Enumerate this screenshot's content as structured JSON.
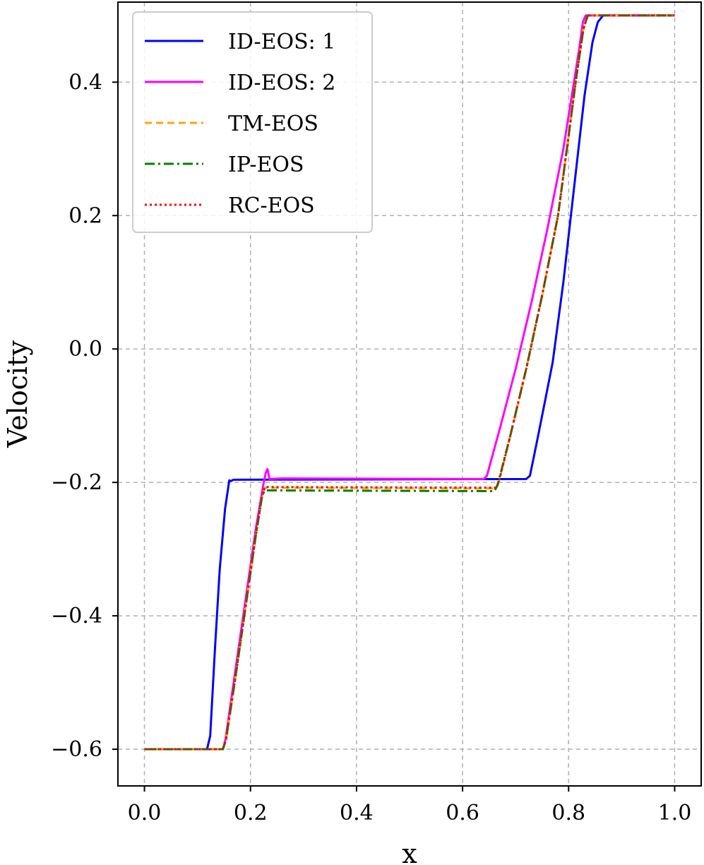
{
  "chart_data": {
    "type": "line",
    "title": "",
    "xlabel": "x",
    "ylabel": "Velocity",
    "xlim": [
      -0.05,
      1.05
    ],
    "ylim": [
      -0.655,
      0.52
    ],
    "xticks": [
      0.0,
      0.2,
      0.4,
      0.6,
      0.8,
      1.0
    ],
    "xtick_labels": [
      "0.0",
      "0.2",
      "0.4",
      "0.6",
      "0.8",
      "1.0"
    ],
    "yticks": [
      -0.6,
      -0.4,
      -0.2,
      0.0,
      0.2,
      0.4
    ],
    "ytick_labels": [
      "−0.6",
      "−0.4",
      "−0.2",
      "0.0",
      "0.2",
      "0.4"
    ],
    "grid": true,
    "legend_position": "top-left",
    "series": [
      {
        "name": "ID-EOS: 1",
        "color": "#0000ff",
        "dash": "solid",
        "points": [
          [
            0.0,
            -0.6
          ],
          [
            0.118,
            -0.6
          ],
          [
            0.124,
            -0.58
          ],
          [
            0.133,
            -0.45
          ],
          [
            0.142,
            -0.33
          ],
          [
            0.152,
            -0.24
          ],
          [
            0.16,
            -0.197
          ],
          [
            0.163,
            -0.198
          ],
          [
            0.168,
            -0.196
          ],
          [
            0.72,
            -0.195
          ],
          [
            0.727,
            -0.19
          ],
          [
            0.74,
            -0.14
          ],
          [
            0.755,
            -0.08
          ],
          [
            0.77,
            -0.02
          ],
          [
            0.79,
            0.1
          ],
          [
            0.81,
            0.24
          ],
          [
            0.83,
            0.38
          ],
          [
            0.845,
            0.46
          ],
          [
            0.855,
            0.49
          ],
          [
            0.865,
            0.5
          ],
          [
            1.0,
            0.5
          ]
        ]
      },
      {
        "name": "ID-EOS: 2",
        "color": "#ff00ff",
        "dash": "solid",
        "points": [
          [
            0.0,
            -0.6
          ],
          [
            0.148,
            -0.6
          ],
          [
            0.153,
            -0.585
          ],
          [
            0.17,
            -0.49
          ],
          [
            0.19,
            -0.38
          ],
          [
            0.21,
            -0.27
          ],
          [
            0.225,
            -0.2
          ],
          [
            0.229,
            -0.185
          ],
          [
            0.232,
            -0.18
          ],
          [
            0.236,
            -0.195
          ],
          [
            0.26,
            -0.194
          ],
          [
            0.64,
            -0.195
          ],
          [
            0.646,
            -0.19
          ],
          [
            0.67,
            -0.12
          ],
          [
            0.7,
            -0.03
          ],
          [
            0.73,
            0.07
          ],
          [
            0.76,
            0.18
          ],
          [
            0.79,
            0.3
          ],
          [
            0.81,
            0.4
          ],
          [
            0.82,
            0.45
          ],
          [
            0.827,
            0.49
          ],
          [
            0.832,
            0.5
          ],
          [
            1.0,
            0.5
          ]
        ]
      },
      {
        "name": "TM-EOS",
        "color": "#ffa500",
        "dash": "dashed",
        "points": [
          [
            0.0,
            -0.6
          ],
          [
            0.148,
            -0.6
          ],
          [
            0.154,
            -0.585
          ],
          [
            0.172,
            -0.49
          ],
          [
            0.192,
            -0.38
          ],
          [
            0.21,
            -0.28
          ],
          [
            0.222,
            -0.22
          ],
          [
            0.227,
            -0.208
          ],
          [
            0.24,
            -0.208
          ],
          [
            0.662,
            -0.209
          ],
          [
            0.668,
            -0.2
          ],
          [
            0.69,
            -0.13
          ],
          [
            0.72,
            -0.03
          ],
          [
            0.75,
            0.08
          ],
          [
            0.78,
            0.2
          ],
          [
            0.8,
            0.32
          ],
          [
            0.815,
            0.41
          ],
          [
            0.828,
            0.48
          ],
          [
            0.836,
            0.5
          ],
          [
            1.0,
            0.5
          ]
        ]
      },
      {
        "name": "IP-EOS",
        "color": "#008000",
        "dash": "dashdot",
        "points": [
          [
            0.0,
            -0.6
          ],
          [
            0.148,
            -0.6
          ],
          [
            0.154,
            -0.585
          ],
          [
            0.172,
            -0.49
          ],
          [
            0.192,
            -0.38
          ],
          [
            0.21,
            -0.28
          ],
          [
            0.222,
            -0.22
          ],
          [
            0.227,
            -0.212
          ],
          [
            0.24,
            -0.212
          ],
          [
            0.66,
            -0.213
          ],
          [
            0.666,
            -0.204
          ],
          [
            0.69,
            -0.13
          ],
          [
            0.72,
            -0.03
          ],
          [
            0.75,
            0.08
          ],
          [
            0.78,
            0.2
          ],
          [
            0.8,
            0.32
          ],
          [
            0.815,
            0.41
          ],
          [
            0.828,
            0.48
          ],
          [
            0.836,
            0.5
          ],
          [
            1.0,
            0.5
          ]
        ]
      },
      {
        "name": "RC-EOS",
        "color": "#ff0000",
        "dash": "dotted",
        "points": [
          [
            0.0,
            -0.6
          ],
          [
            0.148,
            -0.6
          ],
          [
            0.154,
            -0.585
          ],
          [
            0.172,
            -0.49
          ],
          [
            0.192,
            -0.38
          ],
          [
            0.21,
            -0.28
          ],
          [
            0.222,
            -0.22
          ],
          [
            0.227,
            -0.207
          ],
          [
            0.24,
            -0.207
          ],
          [
            0.662,
            -0.208
          ],
          [
            0.668,
            -0.2
          ],
          [
            0.69,
            -0.13
          ],
          [
            0.72,
            -0.03
          ],
          [
            0.75,
            0.08
          ],
          [
            0.78,
            0.2
          ],
          [
            0.8,
            0.32
          ],
          [
            0.815,
            0.41
          ],
          [
            0.828,
            0.48
          ],
          [
            0.836,
            0.5
          ],
          [
            1.0,
            0.5
          ]
        ]
      }
    ]
  }
}
